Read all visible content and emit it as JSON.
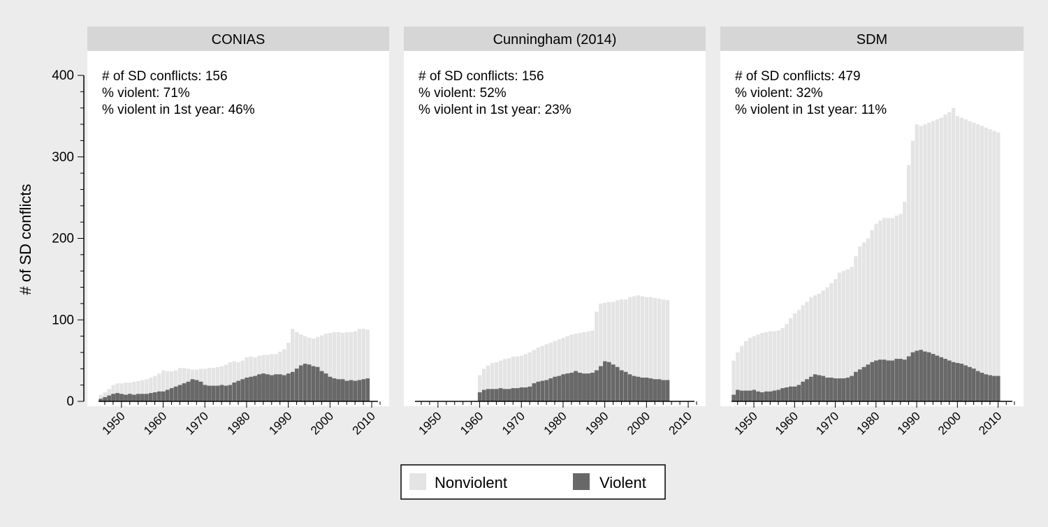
{
  "figure": {
    "ylabel": "# of SD conflicts",
    "legend": [
      {
        "label": "Nonviolent",
        "color": "#e4e4e4"
      },
      {
        "label": "Violent",
        "color": "#686868"
      }
    ]
  },
  "chart_data": [
    {
      "type": "bar",
      "stacked": true,
      "title": "CONIAS",
      "ylabel": "# of SD conflicts",
      "xlim": [
        1945,
        2012
      ],
      "ylim": [
        0,
        400
      ],
      "yticks": [
        0,
        100,
        200,
        300,
        400
      ],
      "xticks": [
        1950,
        1960,
        1970,
        1980,
        1990,
        2000,
        2010
      ],
      "annotations": [
        "# of SD conflicts: 156",
        "% violent: 71%",
        "% violent in 1st year: 46%"
      ],
      "legend_position": "bottom-center",
      "x_start": 1945,
      "total": [
        8,
        11,
        15,
        20,
        22,
        22,
        23,
        23,
        24,
        25,
        26,
        27,
        29,
        31,
        34,
        38,
        37,
        37,
        38,
        41,
        41,
        40,
        39,
        39,
        40,
        40,
        41,
        41,
        42,
        43,
        45,
        48,
        49,
        48,
        50,
        54,
        55,
        54,
        56,
        57,
        57,
        58,
        58,
        61,
        64,
        72,
        89,
        85,
        82,
        80,
        78,
        77,
        79,
        81,
        83,
        84,
        85,
        85,
        84,
        85,
        85,
        86,
        89,
        89,
        88
      ],
      "violent": [
        3,
        5,
        7,
        9,
        10,
        9,
        8,
        9,
        8,
        9,
        9,
        9,
        10,
        11,
        12,
        12,
        14,
        16,
        18,
        20,
        22,
        24,
        27,
        26,
        24,
        20,
        19,
        19,
        19,
        20,
        19,
        20,
        23,
        25,
        27,
        29,
        30,
        31,
        33,
        34,
        33,
        32,
        33,
        33,
        32,
        34,
        36,
        40,
        44,
        46,
        45,
        43,
        42,
        37,
        34,
        30,
        28,
        27,
        27,
        25,
        26,
        25,
        26,
        27,
        28
      ]
    },
    {
      "type": "bar",
      "stacked": true,
      "title": "Cunningham (2014)",
      "ylabel": "",
      "xlim": [
        1945,
        2012
      ],
      "ylim": [
        0,
        400
      ],
      "yticks": [
        0,
        100,
        200,
        300,
        400
      ],
      "xticks": [
        1950,
        1960,
        1970,
        1980,
        1990,
        2000,
        2010
      ],
      "annotations": [
        "# of SD conflicts: 156",
        "% violent: 52%",
        "% violent in 1st year: 23%"
      ],
      "x_start": 1960,
      "total": [
        32,
        40,
        44,
        47,
        48,
        50,
        52,
        53,
        55,
        55,
        56,
        58,
        60,
        63,
        66,
        68,
        70,
        72,
        74,
        76,
        78,
        80,
        82,
        83,
        84,
        85,
        86,
        87,
        110,
        120,
        121,
        122,
        122,
        124,
        125,
        125,
        128,
        129,
        130,
        129,
        128,
        128,
        127,
        126,
        125,
        124
      ],
      "violent": [
        11,
        14,
        15,
        15,
        15,
        16,
        15,
        15,
        16,
        16,
        17,
        17,
        18,
        22,
        24,
        25,
        26,
        28,
        30,
        31,
        33,
        34,
        35,
        37,
        35,
        34,
        34,
        35,
        38,
        43,
        49,
        48,
        45,
        42,
        38,
        36,
        33,
        31,
        30,
        29,
        29,
        28,
        27,
        27,
        26,
        26
      ]
    },
    {
      "type": "bar",
      "stacked": true,
      "title": "SDM",
      "ylabel": "",
      "xlim": [
        1945,
        2014
      ],
      "ylim": [
        0,
        400
      ],
      "yticks": [
        0,
        100,
        200,
        300,
        400
      ],
      "xticks": [
        1950,
        1960,
        1970,
        1980,
        1990,
        2000,
        2010
      ],
      "annotations": [
        "# of SD conflicts: 479",
        "% violent: 32%",
        "% violent in 1st year: 11%"
      ],
      "x_start": 1945,
      "total": [
        50,
        60,
        68,
        74,
        78,
        80,
        82,
        84,
        85,
        86,
        86,
        87,
        90,
        95,
        102,
        108,
        112,
        118,
        122,
        128,
        130,
        132,
        136,
        140,
        145,
        150,
        158,
        160,
        162,
        165,
        178,
        190,
        195,
        200,
        210,
        218,
        222,
        225,
        225,
        225,
        228,
        230,
        245,
        290,
        320,
        340,
        338,
        340,
        342,
        344,
        346,
        348,
        352,
        355,
        360,
        350,
        348,
        346,
        344,
        342,
        340,
        338,
        336,
        334,
        332,
        330
      ],
      "violent": [
        8,
        14,
        13,
        13,
        13,
        14,
        12,
        11,
        12,
        12,
        13,
        14,
        16,
        17,
        18,
        18,
        20,
        24,
        27,
        30,
        33,
        32,
        31,
        29,
        29,
        28,
        28,
        28,
        29,
        31,
        36,
        39,
        42,
        45,
        48,
        50,
        51,
        51,
        50,
        50,
        52,
        52,
        51,
        55,
        60,
        62,
        63,
        61,
        60,
        58,
        56,
        54,
        52,
        50,
        48,
        47,
        46,
        44,
        42,
        40,
        37,
        35,
        33,
        32,
        31,
        31
      ]
    }
  ]
}
